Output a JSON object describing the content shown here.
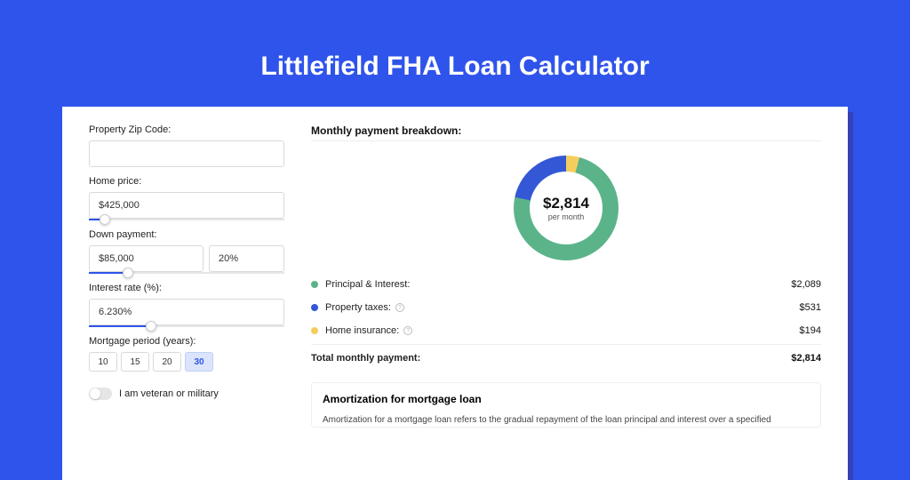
{
  "page": {
    "title": "Littlefield FHA Loan Calculator",
    "background_color": "#2f54eb",
    "card_shadow_color": "#3541b5"
  },
  "form": {
    "zip": {
      "label": "Property Zip Code:",
      "value": ""
    },
    "home_price": {
      "label": "Home price:",
      "value": "$425,000",
      "slider_percent": 8
    },
    "down_payment": {
      "label": "Down payment:",
      "amount": "$85,000",
      "percent": "20%",
      "slider_percent": 20
    },
    "interest": {
      "label": "Interest rate (%):",
      "value": "6.230%",
      "slider_percent": 32
    },
    "period": {
      "label": "Mortgage period (years):",
      "options": [
        "10",
        "15",
        "20",
        "30"
      ],
      "selected": "30"
    },
    "veteran": {
      "label": "I am veteran or military",
      "checked": false
    }
  },
  "breakdown": {
    "heading": "Monthly payment breakdown:",
    "donut": {
      "amount": "$2,814",
      "sub": "per month",
      "size": 118,
      "thickness": 18,
      "slices": [
        {
          "label": "Principal & Interest:",
          "value": "$2,089",
          "color": "#5bb38a",
          "percent": 74.2
        },
        {
          "label": "Property taxes:",
          "value": "$531",
          "color": "#3457d5",
          "percent": 18.9,
          "info": true
        },
        {
          "label": "Home insurance:",
          "value": "$194",
          "color": "#f3ce5e",
          "percent": 6.9,
          "info": true
        }
      ]
    },
    "total": {
      "label": "Total monthly payment:",
      "value": "$2,814"
    }
  },
  "amortization": {
    "heading": "Amortization for mortgage loan",
    "text": "Amortization for a mortgage loan refers to the gradual repayment of the loan principal and interest over a specified"
  }
}
